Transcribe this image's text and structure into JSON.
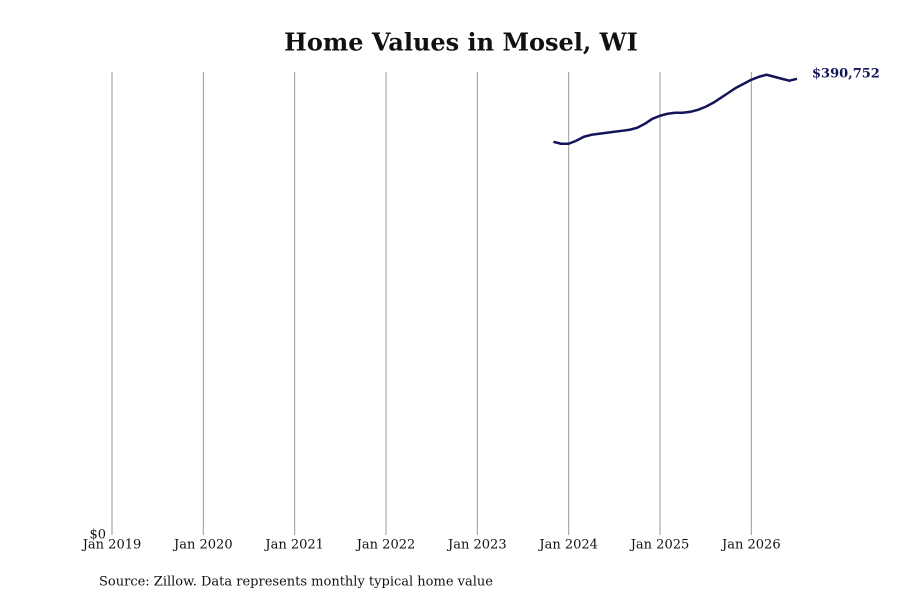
{
  "chart_data": {
    "type": "line",
    "title": "Home Values in Mosel, WI",
    "source": "Source: Zillow. Data represents monthly typical home value",
    "x": [
      "2023-11",
      "2023-12",
      "2024-01",
      "2024-02",
      "2024-03",
      "2024-04",
      "2024-05",
      "2024-06",
      "2024-07",
      "2024-08",
      "2024-09",
      "2024-10",
      "2024-11",
      "2024-12",
      "2025-01",
      "2025-02",
      "2025-03",
      "2025-04",
      "2025-05",
      "2025-06",
      "2025-07",
      "2025-08",
      "2025-09",
      "2025-10",
      "2025-11",
      "2025-12",
      "2026-01",
      "2026-02",
      "2026-03",
      "2026-04",
      "2026-05",
      "2026-06",
      "2026-07"
    ],
    "series": [
      {
        "color": "#14145a",
        "values": [
          336800,
          335100,
          335100,
          337700,
          341100,
          342800,
          343700,
          344500,
          345400,
          346200,
          347100,
          348800,
          352200,
          356500,
          359100,
          360800,
          361700,
          361700,
          362500,
          364200,
          366800,
          370200,
          374500,
          378800,
          383100,
          386500,
          389900,
          392500,
          394200,
          392500,
          390800,
          389100,
          390752
        ],
        "value_labels": [
          null,
          null,
          null,
          null,
          null,
          null,
          null,
          null,
          null,
          null,
          null,
          null,
          null,
          null,
          null,
          null,
          null,
          null,
          null,
          null,
          null,
          null,
          null,
          null,
          null,
          null,
          null,
          null,
          null,
          null,
          null,
          null,
          "$390,752"
        ]
      }
    ],
    "xlim": [
      "2019-01",
      "2026-07"
    ],
    "xticks": [
      {
        "value": "2019-01",
        "label": "Jan 2019"
      },
      {
        "value": "2020-01",
        "label": "Jan 2020"
      },
      {
        "value": "2021-01",
        "label": "Jan 2021"
      },
      {
        "value": "2022-01",
        "label": "Jan 2022"
      },
      {
        "value": "2023-01",
        "label": "Jan 2023"
      },
      {
        "value": "2024-01",
        "label": "Jan 2024"
      },
      {
        "value": "2025-01",
        "label": "Jan 2025"
      },
      {
        "value": "2026-01",
        "label": "Jan 2026"
      }
    ],
    "ylim": [
      0,
      400000
    ],
    "yticks": [
      {
        "value": 0,
        "label": "$0"
      }
    ],
    "grid": true
  }
}
